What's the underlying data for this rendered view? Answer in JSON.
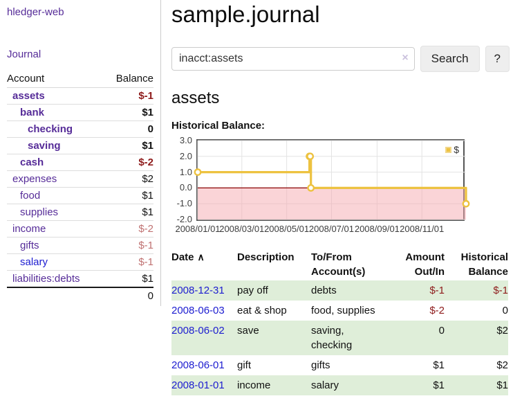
{
  "colors": {
    "link_visited_purple": "#562c98",
    "link_blue": "#1c1cd0",
    "negative_red": "#8e1b1b",
    "negative_muted_red": "#c07272",
    "row_stripe_green": "#dfeed9",
    "chart_line_gold": "#edc240",
    "chart_negative_region_pink": "#f5a9b0",
    "chart_zero_line_dark_red": "#8b0000"
  },
  "sidebar": {
    "app_title": "hledger-web",
    "nav_journal": "Journal",
    "accounts": {
      "header_account": "Account",
      "header_balance": "Balance",
      "rows": [
        {
          "name": "assets",
          "balance": "$-1",
          "indent": 1,
          "bold": true,
          "link_style": "visited",
          "balance_style": "negative"
        },
        {
          "name": "bank",
          "balance": "$1",
          "indent": 2,
          "bold": true,
          "link_style": "visited",
          "balance_style": "normal"
        },
        {
          "name": "checking",
          "balance": "0",
          "indent": 3,
          "bold": true,
          "link_style": "visited",
          "balance_style": "normal"
        },
        {
          "name": "saving",
          "balance": "$1",
          "indent": 3,
          "bold": true,
          "link_style": "visited",
          "balance_style": "normal"
        },
        {
          "name": "cash",
          "balance": "$-2",
          "indent": 2,
          "bold": true,
          "link_style": "visited",
          "balance_style": "negative"
        },
        {
          "name": "expenses",
          "balance": "$2",
          "indent": 1,
          "bold": false,
          "link_style": "visited",
          "balance_style": "normal"
        },
        {
          "name": "food",
          "balance": "$1",
          "indent": 2,
          "bold": false,
          "link_style": "visited",
          "balance_style": "normal"
        },
        {
          "name": "supplies",
          "balance": "$1",
          "indent": 2,
          "bold": false,
          "link_style": "visited",
          "balance_style": "normal"
        },
        {
          "name": "income",
          "balance": "$-2",
          "indent": 1,
          "bold": false,
          "link_style": "visited",
          "balance_style": "negative-muted"
        },
        {
          "name": "gifts",
          "balance": "$-1",
          "indent": 2,
          "bold": false,
          "link_style": "visited",
          "balance_style": "negative-muted"
        },
        {
          "name": "salary",
          "balance": "$-1",
          "indent": 2,
          "bold": false,
          "link_style": "unvisited",
          "balance_style": "negative-muted"
        },
        {
          "name": "liabilities:debts",
          "balance": "$1",
          "indent": 1,
          "bold": false,
          "link_style": "visited",
          "balance_style": "normal"
        }
      ],
      "total": "0"
    }
  },
  "header": {
    "title": "sample.journal"
  },
  "search": {
    "value": "inacct:assets",
    "clear_icon": "×",
    "button_label": "Search",
    "help_label": "?"
  },
  "account_page": {
    "title": "assets",
    "chart_label": "Historical Balance:"
  },
  "chart_data": {
    "type": "line",
    "title": "Historical Balance:",
    "step": true,
    "ylim": [
      -2,
      3
    ],
    "y_ticks": [
      "3.0",
      "2.0",
      "1.0",
      "0.0",
      "-1.0",
      "-2.0"
    ],
    "x_ticks": [
      "2008/01/01",
      "2008/03/01",
      "2008/05/01",
      "2008/07/01",
      "2008/09/01",
      "2008/11/01"
    ],
    "legend": {
      "label": "$",
      "position": "top-right"
    },
    "series": [
      {
        "name": "$",
        "color": "#edc240",
        "points": [
          {
            "date": "2008-01-01",
            "value": 1
          },
          {
            "date": "2008-06-01",
            "value": 2
          },
          {
            "date": "2008-06-02",
            "value": 2
          },
          {
            "date": "2008-06-03",
            "value": 0
          },
          {
            "date": "2008-12-31",
            "value": -1
          }
        ]
      }
    ]
  },
  "register": {
    "headers": {
      "date": "Date",
      "sort_icon": "∧",
      "description": "Description",
      "accounts": "To/From Account(s)",
      "amount": "Amount Out/In",
      "balance": "Historical Balance"
    },
    "rows": [
      {
        "date": "2008-12-31",
        "description": "pay off",
        "accounts": "debts",
        "amount": "$-1",
        "balance": "$-1",
        "amount_negative": true,
        "balance_negative": true
      },
      {
        "date": "2008-06-03",
        "description": "eat & shop",
        "accounts": "food, supplies",
        "amount": "$-2",
        "balance": "0",
        "amount_negative": true,
        "balance_negative": false
      },
      {
        "date": "2008-06-02",
        "description": "save",
        "accounts": "saving, checking",
        "amount": "0",
        "balance": "$2",
        "amount_negative": false,
        "balance_negative": false
      },
      {
        "date": "2008-06-01",
        "description": "gift",
        "accounts": "gifts",
        "amount": "$1",
        "balance": "$2",
        "amount_negative": false,
        "balance_negative": false
      },
      {
        "date": "2008-01-01",
        "description": "income",
        "accounts": "salary",
        "amount": "$1",
        "balance": "$1",
        "amount_negative": false,
        "balance_negative": false
      }
    ]
  }
}
